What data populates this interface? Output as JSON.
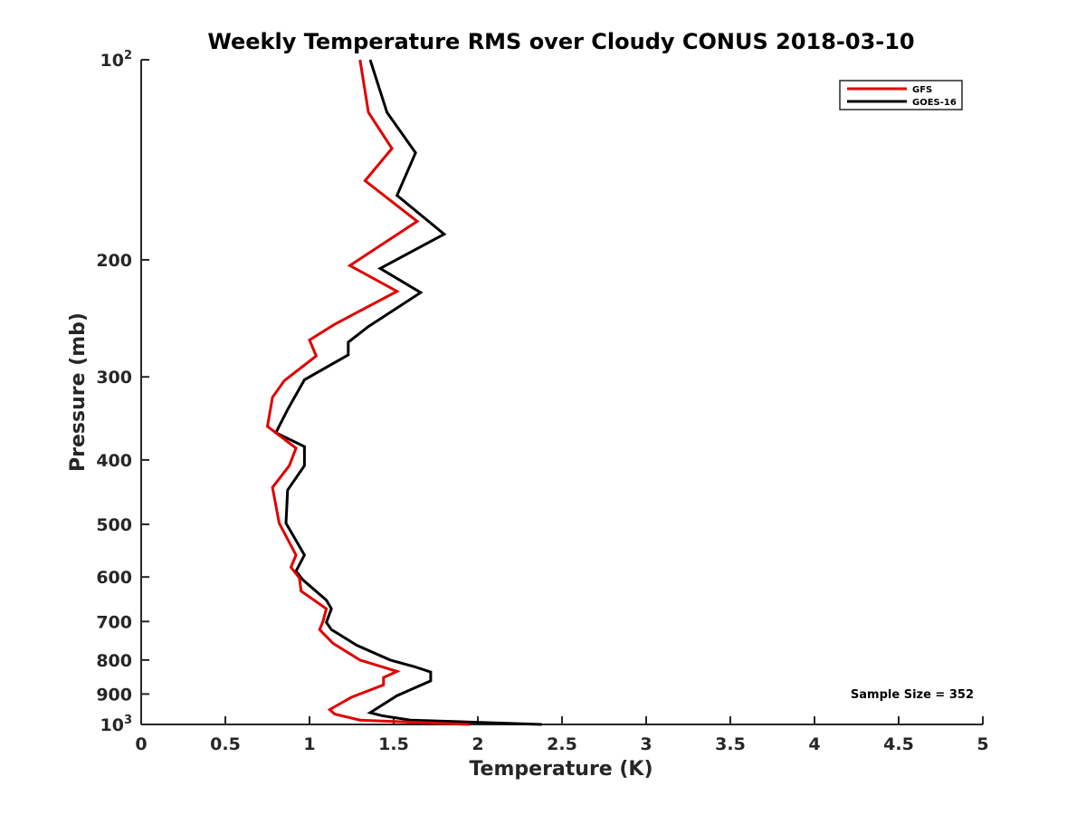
{
  "chart_data": {
    "type": "line",
    "title": "Weekly Temperature RMS over Cloudy CONUS 2018-03-10",
    "xlabel": "Temperature (K)",
    "ylabel": "Pressure (mb)",
    "xlim": [
      0,
      5
    ],
    "ylim": [
      100,
      1000
    ],
    "y_scale": "log",
    "y_reversed": true,
    "grid": false,
    "legend_position": "top-right",
    "x_ticks": [
      "0",
      "0.5",
      "1",
      "1.5",
      "2",
      "2.5",
      "3",
      "3.5",
      "4",
      "4.5",
      "5"
    ],
    "y_ticks": [
      {
        "value": 100,
        "base": "10",
        "exp": "2"
      },
      {
        "value": 200,
        "label": "200"
      },
      {
        "value": 300,
        "label": "300"
      },
      {
        "value": 400,
        "label": "400"
      },
      {
        "value": 500,
        "label": "500"
      },
      {
        "value": 600,
        "label": "600"
      },
      {
        "value": 700,
        "label": "700"
      },
      {
        "value": 800,
        "label": "800"
      },
      {
        "value": 900,
        "label": "900"
      },
      {
        "value": 1000,
        "base": "10",
        "exp": "3"
      }
    ],
    "annotation": "Sample Size = 352",
    "series": [
      {
        "name": "GFS",
        "color": "#e00000",
        "points": [
          [
            1.3,
            100
          ],
          [
            1.35,
            120
          ],
          [
            1.49,
            136
          ],
          [
            1.33,
            152
          ],
          [
            1.64,
            175
          ],
          [
            1.24,
            204
          ],
          [
            1.52,
            223
          ],
          [
            1.15,
            250
          ],
          [
            1.0,
            264
          ],
          [
            1.04,
            279
          ],
          [
            0.85,
            304
          ],
          [
            0.78,
            322
          ],
          [
            0.75,
            356
          ],
          [
            0.92,
            384
          ],
          [
            0.88,
            408
          ],
          [
            0.78,
            440
          ],
          [
            0.82,
            498
          ],
          [
            0.92,
            556
          ],
          [
            0.89,
            580
          ],
          [
            0.94,
            602
          ],
          [
            0.95,
            630
          ],
          [
            1.1,
            670
          ],
          [
            1.08,
            700
          ],
          [
            1.06,
            720
          ],
          [
            1.14,
            755
          ],
          [
            1.3,
            800
          ],
          [
            1.52,
            832
          ],
          [
            1.44,
            850
          ],
          [
            1.44,
            872
          ],
          [
            1.25,
            910
          ],
          [
            1.12,
            950
          ],
          [
            1.15,
            965
          ],
          [
            1.3,
            985
          ],
          [
            1.95,
            1000
          ]
        ]
      },
      {
        "name": "GOES-16",
        "color": "#000000",
        "points": [
          [
            1.36,
            100
          ],
          [
            1.46,
            120
          ],
          [
            1.63,
            138
          ],
          [
            1.52,
            160
          ],
          [
            1.8,
            183
          ],
          [
            1.42,
            206
          ],
          [
            1.66,
            224
          ],
          [
            1.35,
            252
          ],
          [
            1.23,
            266
          ],
          [
            1.23,
            278
          ],
          [
            0.97,
            303
          ],
          [
            0.87,
            336
          ],
          [
            0.8,
            364
          ],
          [
            0.97,
            382
          ],
          [
            0.97,
            408
          ],
          [
            0.87,
            444
          ],
          [
            0.86,
            498
          ],
          [
            0.97,
            556
          ],
          [
            0.92,
            588
          ],
          [
            0.96,
            606
          ],
          [
            1.1,
            650
          ],
          [
            1.13,
            670
          ],
          [
            1.1,
            702
          ],
          [
            1.13,
            720
          ],
          [
            1.28,
            760
          ],
          [
            1.48,
            800
          ],
          [
            1.62,
            818
          ],
          [
            1.72,
            834
          ],
          [
            1.72,
            860
          ],
          [
            1.52,
            905
          ],
          [
            1.36,
            960
          ],
          [
            1.43,
            970
          ],
          [
            1.6,
            985
          ],
          [
            2.38,
            1000
          ]
        ]
      }
    ]
  }
}
